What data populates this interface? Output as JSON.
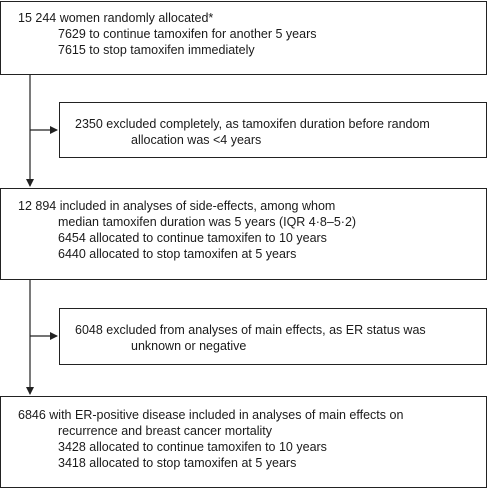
{
  "flowchart": {
    "box1": {
      "lines": [
        "15 244 women randomly allocated*",
        "7629 to continue tamoxifen for another 5 years",
        "7615 to stop tamoxifen immediately"
      ]
    },
    "exclusion1": {
      "lines": [
        "2350 excluded completely, as tamoxifen duration before random",
        "allocation was <4 years"
      ]
    },
    "box2": {
      "lines": [
        "12 894 included in analyses of side-effects, among whom",
        "median tamoxifen duration was 5 years (IQR 4·8–5·2)",
        "6454 allocated to continue tamoxifen to 10 years",
        "6440 allocated to stop tamoxifen at 5 years"
      ]
    },
    "exclusion2": {
      "lines": [
        "6048 excluded from analyses of main effects, as ER status was",
        "unknown or negative"
      ]
    },
    "box3": {
      "lines": [
        "6846 with ER-positive disease included in analyses of main effects on",
        "recurrence and breast cancer mortality",
        "3428 allocated to continue tamoxifen to 10 years",
        "3418 allocated to stop tamoxifen at 5 years"
      ]
    }
  }
}
